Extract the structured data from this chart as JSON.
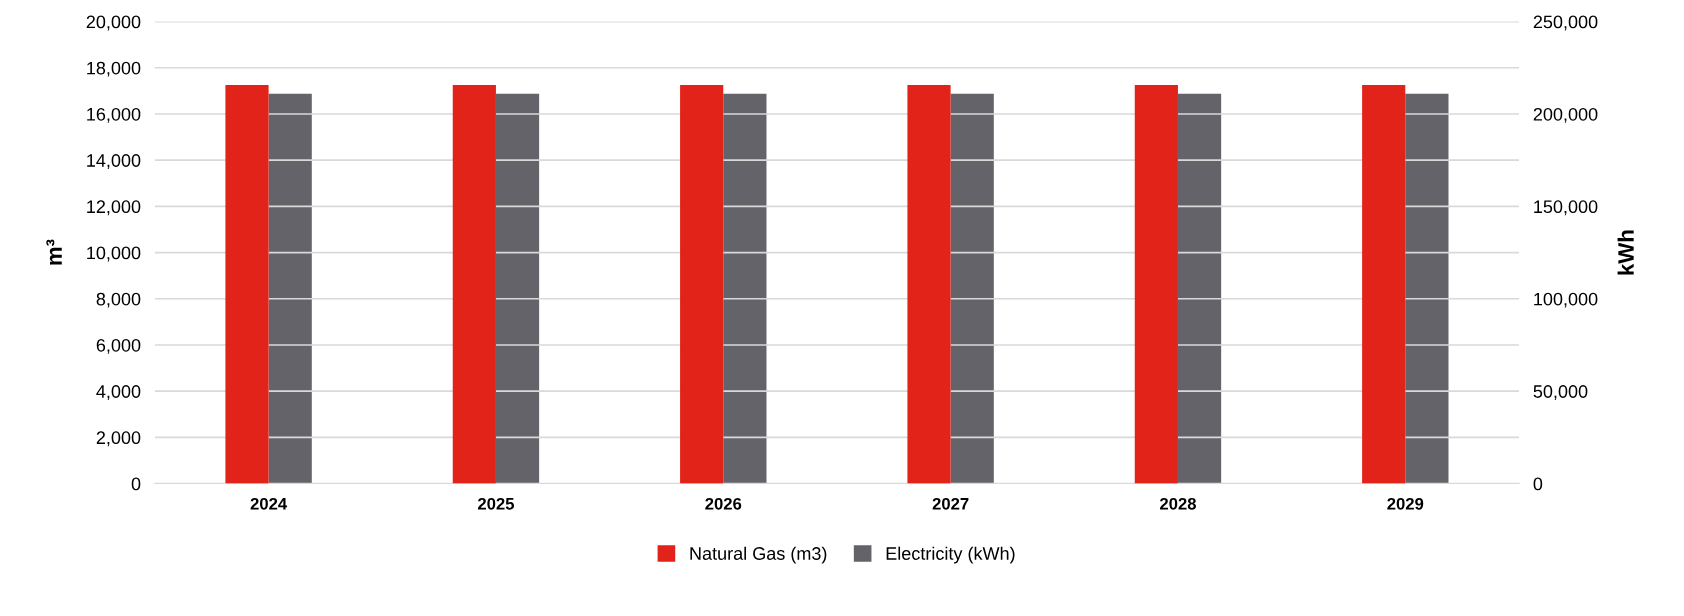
{
  "chart_data": {
    "type": "bar",
    "categories": [
      "2024",
      "2025",
      "2026",
      "2027",
      "2028",
      "2029"
    ],
    "series": [
      {
        "name": "Natural Gas (m3)",
        "color": "#e2231a",
        "values": [
          17250,
          17250,
          17250,
          17250,
          17250,
          17250
        ]
      },
      {
        "name": "Electricity (kWh)",
        "color": "#646369",
        "axis": "y2",
        "values": [
          211000,
          211000,
          211000,
          211000,
          211000,
          211000
        ]
      }
    ],
    "ylabel": "m³",
    "y2label": "kWh",
    "ylim": [
      0,
      20000
    ],
    "yticks": [
      {
        "value": 0,
        "label": "0"
      },
      {
        "value": 2000,
        "label": "2,000"
      },
      {
        "value": 4000,
        "label": "4,000"
      },
      {
        "value": 6000,
        "label": "6,000"
      },
      {
        "value": 8000,
        "label": "8,000"
      },
      {
        "value": 10000,
        "label": "10,000"
      },
      {
        "value": 12000,
        "label": "12,000"
      },
      {
        "value": 14000,
        "label": "14,000"
      },
      {
        "value": 16000,
        "label": "16,000"
      },
      {
        "value": 18000,
        "label": "18,000"
      },
      {
        "value": 20000,
        "label": "20,000"
      }
    ],
    "y2lim": [
      0,
      250000
    ],
    "y2ticks": [
      {
        "value": 0,
        "label": "0"
      },
      {
        "value": 50000,
        "label": "50,000"
      },
      {
        "value": 100000,
        "label": "100,000"
      },
      {
        "value": 150000,
        "label": "150,000"
      },
      {
        "value": 200000,
        "label": "200,000"
      },
      {
        "value": 250000,
        "label": "250,000"
      }
    ],
    "grid": "y",
    "legend": "bottom"
  }
}
